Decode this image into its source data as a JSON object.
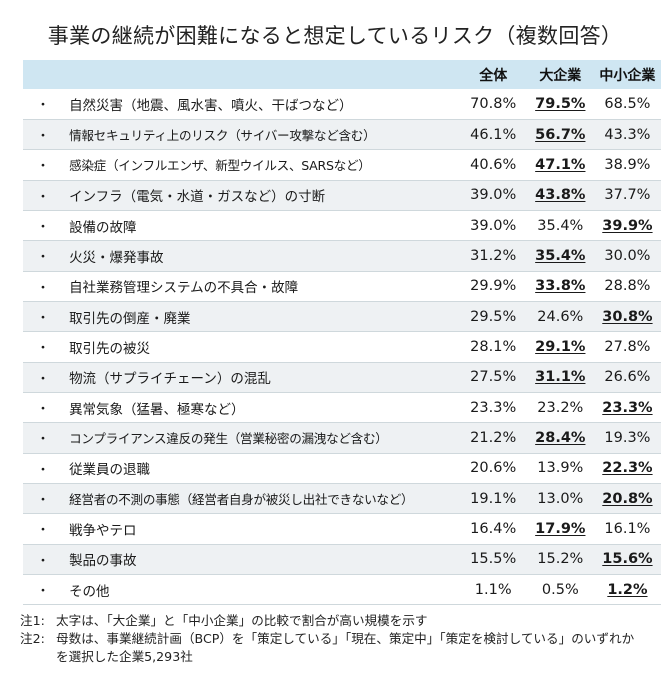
{
  "title": "事業の継続が困難になると想定しているリスク（複数回答）",
  "columns": [
    "全体",
    "大企業",
    "中小企業"
  ],
  "bullet": "・",
  "rows": [
    {
      "label": "自然災害（地震、風水害、噴火、干ばつなど）",
      "values": [
        "70.8%",
        "79.5%",
        "68.5%"
      ],
      "highlight": 1
    },
    {
      "label": "情報セキュリティ上のリスク（サイバー攻撃など含む）",
      "values": [
        "46.1%",
        "56.7%",
        "43.3%"
      ],
      "highlight": 1
    },
    {
      "label": "感染症（インフルエンザ、新型ウイルス、SARSなど）",
      "values": [
        "40.6%",
        "47.1%",
        "38.9%"
      ],
      "highlight": 1
    },
    {
      "label": "インフラ（電気・水道・ガスなど）の寸断",
      "values": [
        "39.0%",
        "43.8%",
        "37.7%"
      ],
      "highlight": 1
    },
    {
      "label": "設備の故障",
      "values": [
        "39.0%",
        "35.4%",
        "39.9%"
      ],
      "highlight": 2
    },
    {
      "label": "火災・爆発事故",
      "values": [
        "31.2%",
        "35.4%",
        "30.0%"
      ],
      "highlight": 1
    },
    {
      "label": "自社業務管理システムの不具合・故障",
      "values": [
        "29.9%",
        "33.8%",
        "28.8%"
      ],
      "highlight": 1
    },
    {
      "label": "取引先の倒産・廃業",
      "values": [
        "29.5%",
        "24.6%",
        "30.8%"
      ],
      "highlight": 2
    },
    {
      "label": "取引先の被災",
      "values": [
        "28.1%",
        "29.1%",
        "27.8%"
      ],
      "highlight": 1
    },
    {
      "label": "物流（サプライチェーン）の混乱",
      "values": [
        "27.5%",
        "31.1%",
        "26.6%"
      ],
      "highlight": 1
    },
    {
      "label": "異常気象（猛暑、極寒など）",
      "values": [
        "23.3%",
        "23.2%",
        "23.3%"
      ],
      "highlight": 2
    },
    {
      "label": "コンプライアンス違反の発生（営業秘密の漏洩など含む）",
      "values": [
        "21.2%",
        "28.4%",
        "19.3%"
      ],
      "highlight": 1
    },
    {
      "label": "従業員の退職",
      "values": [
        "20.6%",
        "13.9%",
        "22.3%"
      ],
      "highlight": 2
    },
    {
      "label": "経営者の不測の事態（経営者自身が被災し出社できないなど）",
      "values": [
        "19.1%",
        "13.0%",
        "20.8%"
      ],
      "highlight": 2
    },
    {
      "label": "戦争やテロ",
      "values": [
        "16.4%",
        "17.9%",
        "16.1%"
      ],
      "highlight": 1
    },
    {
      "label": "製品の事故",
      "values": [
        "15.5%",
        "15.2%",
        "15.6%"
      ],
      "highlight": 2
    },
    {
      "label": "その他",
      "values": [
        "1.1%",
        "0.5%",
        "1.2%"
      ],
      "highlight": 2
    }
  ],
  "notes": [
    {
      "key": "注1:",
      "text": "太字は、「大企業」と「中小企業」の比較で割合が高い規模を示す"
    },
    {
      "key": "注2:",
      "text": "母数は、事業継続計画（BCP）を「策定している」「現在、策定中」「策定を検討している」のいずれかを選択した企業5,293社"
    }
  ]
}
